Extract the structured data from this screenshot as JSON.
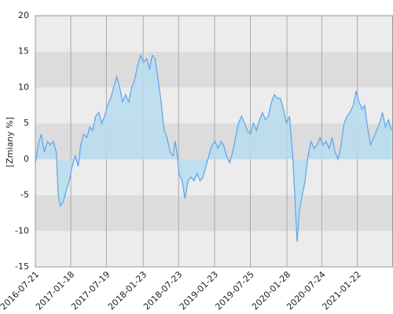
{
  "chart_data": {
    "type": "line",
    "y_label": "[Zmiany %]",
    "x": [
      "2016-07-21",
      "2016-08-05",
      "2016-08-20",
      "2016-09-05",
      "2016-09-20",
      "2016-10-05",
      "2016-10-20",
      "2016-11-05",
      "2016-11-15",
      "2016-11-25",
      "2016-12-10",
      "2016-12-25",
      "2017-01-10",
      "2017-01-25",
      "2017-02-10",
      "2017-02-25",
      "2017-03-10",
      "2017-03-25",
      "2017-04-10",
      "2017-04-25",
      "2017-05-10",
      "2017-05-25",
      "2017-06-10",
      "2017-06-25",
      "2017-07-10",
      "2017-07-25",
      "2017-08-10",
      "2017-08-25",
      "2017-09-10",
      "2017-09-25",
      "2017-10-10",
      "2017-10-25",
      "2017-11-10",
      "2017-11-25",
      "2017-12-10",
      "2017-12-25",
      "2018-01-10",
      "2018-01-25",
      "2018-02-10",
      "2018-02-25",
      "2018-03-10",
      "2018-03-25",
      "2018-04-10",
      "2018-04-25",
      "2018-05-10",
      "2018-05-25",
      "2018-06-10",
      "2018-06-25",
      "2018-07-05",
      "2018-07-15",
      "2018-07-25",
      "2018-08-10",
      "2018-08-25",
      "2018-09-10",
      "2018-09-25",
      "2018-10-10",
      "2018-10-25",
      "2018-11-10",
      "2018-11-25",
      "2018-12-10",
      "2018-12-25",
      "2019-01-10",
      "2019-01-25",
      "2019-02-10",
      "2019-02-25",
      "2019-03-10",
      "2019-03-25",
      "2019-04-10",
      "2019-04-25",
      "2019-05-10",
      "2019-05-25",
      "2019-06-10",
      "2019-06-25",
      "2019-07-10",
      "2019-07-25",
      "2019-08-10",
      "2019-08-25",
      "2019-09-10",
      "2019-09-25",
      "2019-10-10",
      "2019-10-25",
      "2019-11-10",
      "2019-11-25",
      "2019-12-10",
      "2019-12-25",
      "2020-01-10",
      "2020-01-25",
      "2020-02-10",
      "2020-02-25",
      "2020-03-10",
      "2020-03-20",
      "2020-04-01",
      "2020-04-15",
      "2020-04-30",
      "2020-05-15",
      "2020-05-30",
      "2020-06-15",
      "2020-06-30",
      "2020-07-15",
      "2020-07-30",
      "2020-08-15",
      "2020-08-30",
      "2020-09-15",
      "2020-09-30",
      "2020-10-15",
      "2020-10-30",
      "2020-11-15",
      "2020-11-30",
      "2020-12-15",
      "2021-01-01",
      "2021-01-15",
      "2021-01-30",
      "2021-02-15",
      "2021-02-28",
      "2021-03-15",
      "2021-03-30",
      "2021-04-15",
      "2021-04-30",
      "2021-05-15",
      "2021-05-30",
      "2021-06-15",
      "2021-06-30",
      "2021-07-15"
    ],
    "series": [
      {
        "color": "#5aa5ec",
        "fill": "#b7dcee",
        "values": [
          -0.5,
          2,
          3.5,
          1,
          2.5,
          2,
          2.5,
          1,
          -5,
          -6.5,
          -6,
          -4.5,
          -3,
          -1,
          0.5,
          -1,
          2,
          3.5,
          3,
          4.5,
          4,
          6,
          6.5,
          5,
          6,
          7.5,
          8.5,
          10,
          11.5,
          10,
          8,
          9,
          8,
          10,
          11,
          13,
          14.5,
          13.5,
          14,
          12.5,
          14.5,
          14,
          11,
          8,
          4,
          3,
          1,
          0.5,
          2.5,
          1,
          -2,
          -3,
          -5.5,
          -3,
          -2.5,
          -3,
          -2,
          -3,
          -2.5,
          -1,
          0.5,
          2,
          2.5,
          1.5,
          2.5,
          2,
          0.5,
          -0.5,
          1,
          3,
          5,
          6,
          5,
          4,
          3.5,
          5,
          4,
          5.5,
          6.5,
          5.5,
          6,
          8,
          9,
          8.5,
          8.5,
          7,
          5,
          6,
          1,
          -6,
          -11.5,
          -7,
          -5,
          -3,
          0.5,
          2.5,
          1.5,
          2,
          3,
          2,
          2.5,
          1.5,
          3,
          1,
          0,
          2,
          5,
          6,
          6.5,
          7.5,
          9.5,
          8,
          7,
          7.5,
          4.5,
          2,
          3,
          4,
          5,
          6.5,
          4.5,
          5.5,
          4
        ]
      }
    ],
    "xlim": [
      "2016-07-21",
      "2021-07-23"
    ],
    "xticks": [
      "2016-07-21",
      "2017-01-18",
      "2017-07-19",
      "2018-01-23",
      "2018-07-23",
      "2019-01-23",
      "2019-07-25",
      "2020-01-28",
      "2020-07-24",
      "2021-01-22"
    ],
    "ylim": [
      -15,
      20
    ],
    "yticks": [
      -15,
      -10,
      -5,
      0,
      5,
      10,
      15,
      20
    ],
    "band_colors": [
      "#ececec",
      "#dcdcdc"
    ],
    "grid": true
  }
}
